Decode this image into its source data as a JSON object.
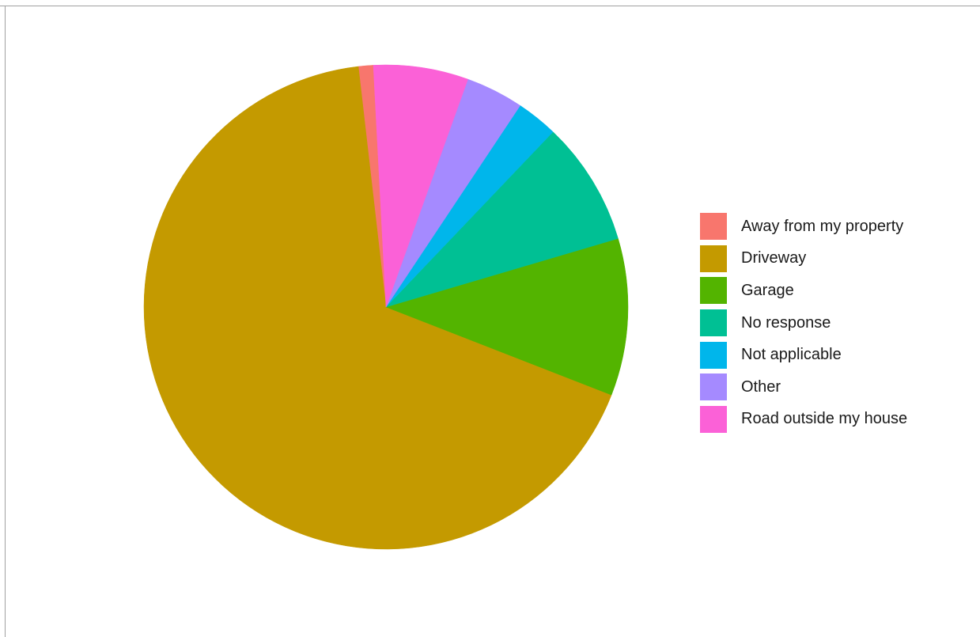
{
  "chart_data": {
    "type": "pie",
    "title": "",
    "start_angle_deg": -3,
    "direction": "counterclockwise",
    "legend_position": "right",
    "slices": [
      {
        "label": "Away from my property",
        "value": 1.0,
        "color": "#F8766D"
      },
      {
        "label": "Driveway",
        "value": 68.0,
        "color": "#C49A00"
      },
      {
        "label": "Garage",
        "value": 10.6,
        "color": "#53B400"
      },
      {
        "label": "No response",
        "value": 8.4,
        "color": "#00C094"
      },
      {
        "label": "Not applicable",
        "value": 2.8,
        "color": "#00B6EB"
      },
      {
        "label": "Other",
        "value": 3.9,
        "color": "#A58AFF"
      },
      {
        "label": "Road outside my house",
        "value": 6.4,
        "color": "#FB61D7"
      }
    ]
  }
}
